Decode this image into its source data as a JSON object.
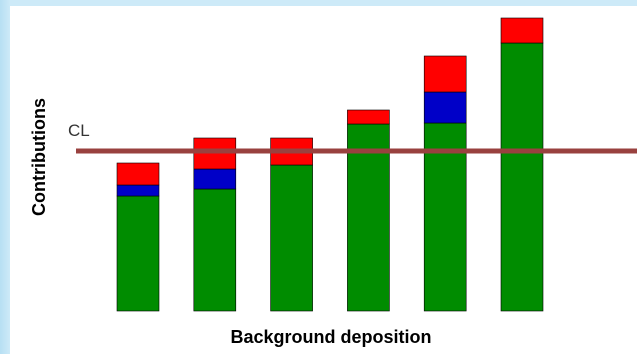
{
  "chart_data": {
    "type": "bar",
    "stacked": true,
    "xlabel": "Background deposition",
    "ylabel": "Contributions",
    "categories": [
      "",
      "",
      "",
      "",
      "",
      ""
    ],
    "series": [
      {
        "color": "#008c00",
        "values": [
          115,
          122,
          146,
          187,
          188,
          268
        ]
      },
      {
        "color": "#0000c8",
        "values": [
          11,
          20,
          0,
          0,
          31,
          0
        ]
      },
      {
        "color": "#ff0000",
        "values": [
          22,
          31,
          27,
          14,
          36,
          25
        ]
      }
    ],
    "reference_line": {
      "label": "CL",
      "value": 160,
      "color": "#99413f"
    },
    "ylim": [
      0,
      295
    ],
    "grid": false,
    "legend": "none"
  }
}
